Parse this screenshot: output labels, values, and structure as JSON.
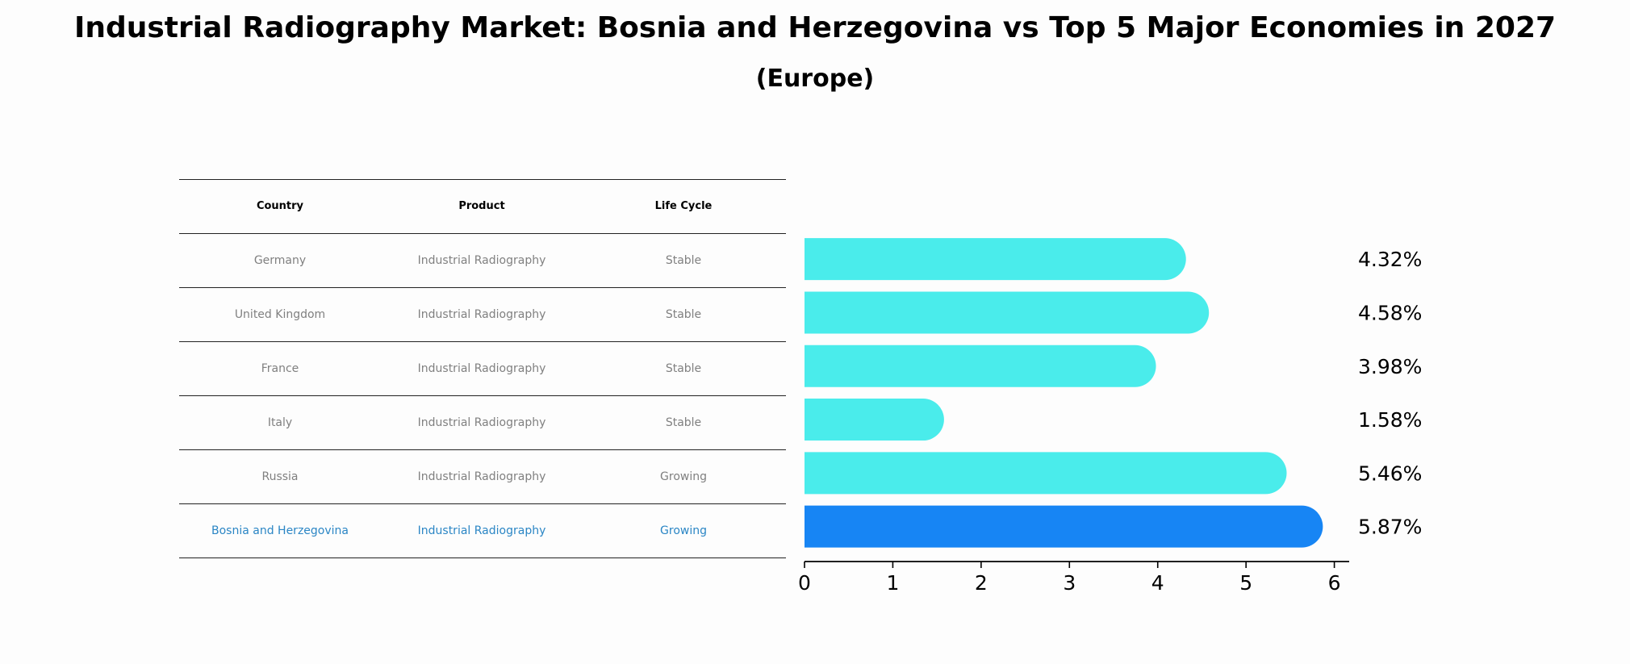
{
  "title": "Industrial Radiography Market: Bosnia and Herzegovina vs Top 5 Major Economies in 2027",
  "subtitle": "(Europe)",
  "table": {
    "headers": [
      "Country",
      "Product",
      "Life Cycle"
    ],
    "rows": [
      {
        "country": "Germany",
        "product": "Industrial Radiography",
        "life_cycle": "Stable"
      },
      {
        "country": "United Kingdom",
        "product": "Industrial Radiography",
        "life_cycle": "Stable"
      },
      {
        "country": "France",
        "product": "Industrial Radiography",
        "life_cycle": "Stable"
      },
      {
        "country": "Italy",
        "product": "Industrial Radiography",
        "life_cycle": "Stable"
      },
      {
        "country": "Russia",
        "product": "Industrial Radiography",
        "life_cycle": "Growing"
      },
      {
        "country": "Bosnia and Herzegovina",
        "product": "Industrial Radiography",
        "life_cycle": "Growing"
      }
    ]
  },
  "chart_data": {
    "type": "bar",
    "orientation": "horizontal",
    "categories": [
      "Germany",
      "United Kingdom",
      "France",
      "Italy",
      "Russia",
      "Bosnia and Herzegovina"
    ],
    "values": [
      4.32,
      4.58,
      3.98,
      1.58,
      5.46,
      5.87
    ],
    "value_labels": [
      "4.32%",
      "4.58%",
      "3.98%",
      "1.58%",
      "5.46%",
      "5.87%"
    ],
    "highlight": "Bosnia and Herzegovina",
    "xlim": [
      0,
      6.15
    ],
    "xticks": [
      0,
      1,
      2,
      3,
      4,
      5,
      6
    ],
    "xlabel": "",
    "ylabel": "",
    "colors": {
      "default": "#4aeceb",
      "highlight": "#1785f4"
    }
  }
}
